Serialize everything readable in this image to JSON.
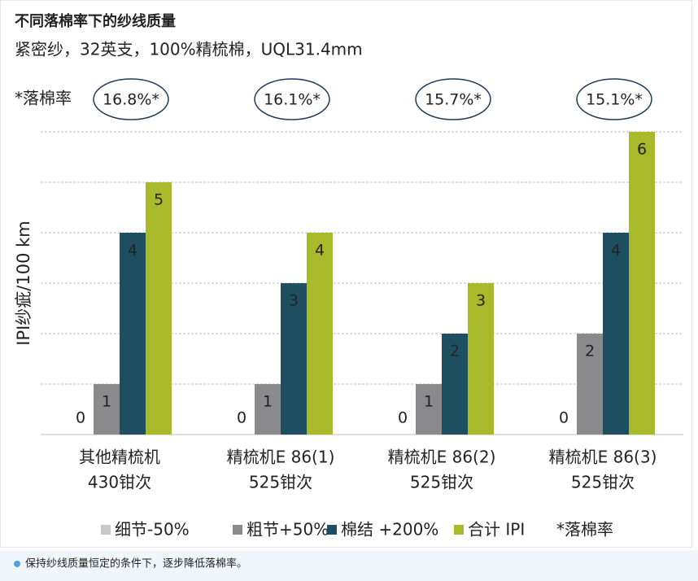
{
  "chart_data": {
    "type": "bar",
    "title": "不同落棉率下的纱线质量",
    "subtitle": "紧密纱，32英支，100%精梳棉，UQL31.4mm",
    "y_label": "IPI纱疵/100 km",
    "rate_label": "*落棉率",
    "rate_annotations": [
      "16.8%*",
      "16.1%*",
      "15.7%*",
      "15.1%*"
    ],
    "categories": [
      [
        "其他精梳机",
        "430钳次"
      ],
      [
        "精梳机E 86(1)",
        "525钳次"
      ],
      [
        "精梳机E 86(2)",
        "525钳次"
      ],
      [
        "精梳机E 86(3)",
        "525钳次"
      ]
    ],
    "series": [
      {
        "name": "细节-50%",
        "color": "#c9c9c9",
        "label_color": "#555555",
        "values": [
          0,
          0,
          0,
          0
        ]
      },
      {
        "name": "粗节+50%",
        "color": "#8a8a8c",
        "label_color": "#ffffff",
        "values": [
          1,
          1,
          1,
          2
        ]
      },
      {
        "name": "棉结 +200%",
        "color": "#1e4f60",
        "label_color": "#ffffff",
        "values": [
          4,
          3,
          2,
          4
        ]
      },
      {
        "name": "合计 IPI",
        "color": "#a8ba2a",
        "label_color": "#1e4f60",
        "values": [
          5,
          4,
          3,
          6
        ]
      }
    ],
    "ylim": [
      0,
      6
    ],
    "yticks": [
      0,
      1,
      2,
      3,
      4,
      5,
      6
    ],
    "grid": true,
    "footnote": "保持纱线质量恒定的条件下，逐步降低落棉率。"
  }
}
